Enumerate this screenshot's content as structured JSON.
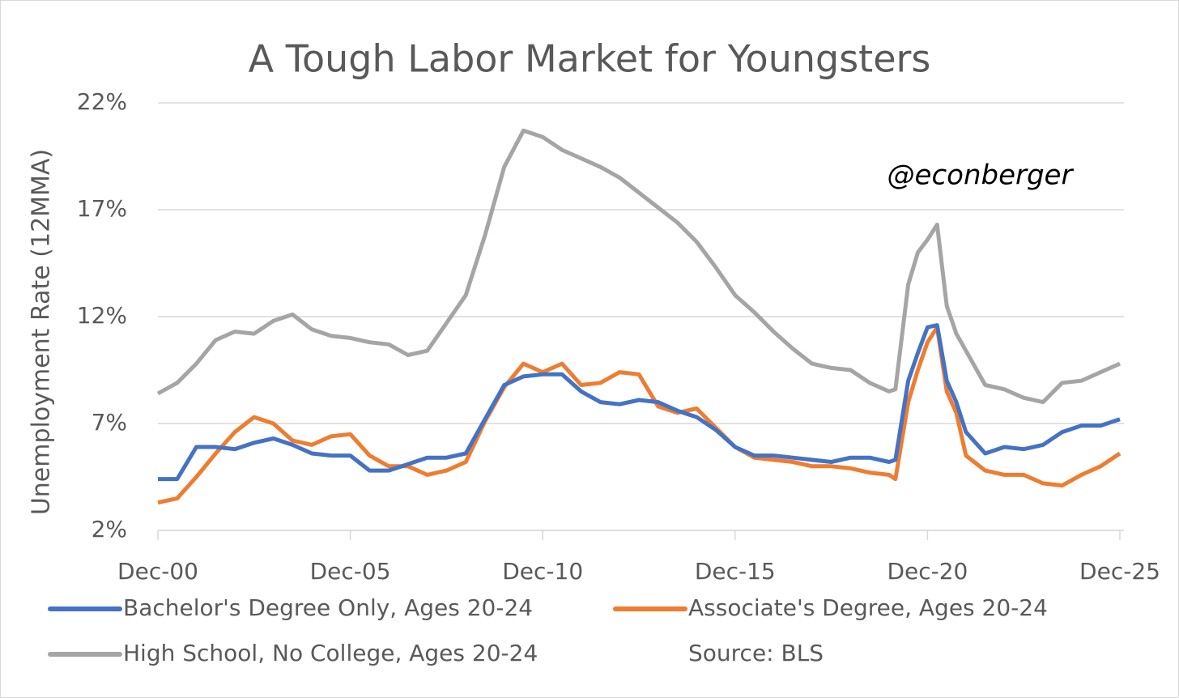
{
  "chart_data": {
    "type": "line",
    "title": "A Tough Labor Market for Youngsters",
    "ylabel": "Unemployment Rate (12MMA)",
    "annotation": "@econberger",
    "source": "Source: BLS",
    "x": [
      "2000-12",
      "2001-06",
      "2001-12",
      "2002-06",
      "2002-12",
      "2003-06",
      "2003-12",
      "2004-06",
      "2004-12",
      "2005-06",
      "2005-12",
      "2006-06",
      "2006-12",
      "2007-06",
      "2007-12",
      "2008-06",
      "2008-12",
      "2009-06",
      "2009-12",
      "2010-06",
      "2010-12",
      "2011-06",
      "2011-12",
      "2012-06",
      "2012-12",
      "2013-06",
      "2013-12",
      "2014-06",
      "2014-12",
      "2015-06",
      "2015-12",
      "2016-06",
      "2016-12",
      "2017-06",
      "2017-12",
      "2018-06",
      "2018-12",
      "2019-06",
      "2019-12",
      "2020-02",
      "2020-06",
      "2020-09",
      "2020-12",
      "2021-03",
      "2021-06",
      "2021-09",
      "2021-12",
      "2022-06",
      "2022-12",
      "2023-06",
      "2023-12",
      "2024-06",
      "2024-12",
      "2025-06",
      "2025-12"
    ],
    "series": [
      {
        "name": "Bachelor's Degree Only, Ages 20-24",
        "color": "#4472c4",
        "values": [
          4.4,
          4.4,
          5.9,
          5.9,
          5.8,
          6.1,
          6.3,
          6.0,
          5.6,
          5.5,
          5.5,
          4.8,
          4.8,
          5.1,
          5.4,
          5.4,
          5.6,
          7.2,
          8.8,
          9.2,
          9.3,
          9.3,
          8.5,
          8.0,
          7.9,
          8.1,
          8.0,
          7.6,
          7.3,
          6.7,
          5.9,
          5.5,
          5.5,
          5.4,
          5.3,
          5.2,
          5.4,
          5.4,
          5.2,
          5.3,
          9.0,
          10.3,
          11.5,
          11.6,
          9.0,
          8.0,
          6.6,
          5.6,
          5.9,
          5.8,
          6.0,
          6.6,
          6.9,
          6.9,
          7.2
        ]
      },
      {
        "name": "Associate's Degree, Ages 20-24",
        "color": "#ed7d31",
        "values": [
          3.3,
          3.5,
          4.5,
          5.6,
          6.6,
          7.3,
          7.0,
          6.2,
          6.0,
          6.4,
          6.5,
          5.5,
          5.0,
          5.0,
          4.6,
          4.8,
          5.2,
          7.1,
          8.7,
          9.8,
          9.4,
          9.8,
          8.8,
          8.9,
          9.4,
          9.3,
          7.8,
          7.5,
          7.7,
          6.8,
          5.9,
          5.4,
          5.3,
          5.2,
          5.0,
          5.0,
          4.9,
          4.7,
          4.6,
          4.4,
          8.0,
          9.5,
          10.8,
          11.5,
          8.5,
          7.5,
          5.5,
          4.8,
          4.6,
          4.6,
          4.2,
          4.1,
          4.6,
          5.0,
          5.6
        ]
      },
      {
        "name": "High School, No College, Ages 20-24",
        "color": "#a5a5a5",
        "values": [
          8.4,
          8.9,
          9.8,
          10.9,
          11.3,
          11.2,
          11.8,
          12.1,
          11.4,
          11.1,
          11.0,
          10.8,
          10.7,
          10.2,
          10.4,
          11.7,
          13.0,
          15.8,
          19.0,
          20.7,
          20.4,
          19.8,
          19.4,
          19.0,
          18.5,
          17.8,
          17.1,
          16.4,
          15.5,
          14.3,
          13.0,
          12.2,
          11.3,
          10.5,
          9.8,
          9.6,
          9.5,
          8.9,
          8.5,
          8.6,
          13.5,
          15.0,
          15.6,
          16.3,
          12.5,
          11.2,
          10.4,
          8.8,
          8.6,
          8.2,
          8.0,
          8.9,
          9.0,
          9.4,
          9.8
        ]
      }
    ],
    "xlim": [
      "2000-12",
      "2025-12"
    ],
    "xticks": [
      {
        "value": "2000-12",
        "label": "Dec-00"
      },
      {
        "value": "2005-12",
        "label": "Dec-05"
      },
      {
        "value": "2010-12",
        "label": "Dec-10"
      },
      {
        "value": "2015-12",
        "label": "Dec-15"
      },
      {
        "value": "2020-12",
        "label": "Dec-20"
      },
      {
        "value": "2025-12",
        "label": "Dec-25"
      }
    ],
    "ylim": [
      2,
      22
    ],
    "yticks": [
      {
        "value": 2,
        "label": "2%"
      },
      {
        "value": 7,
        "label": "7%"
      },
      {
        "value": 12,
        "label": "12%"
      },
      {
        "value": 17,
        "label": "17%"
      },
      {
        "value": 22,
        "label": "22%"
      }
    ],
    "grid": true
  }
}
